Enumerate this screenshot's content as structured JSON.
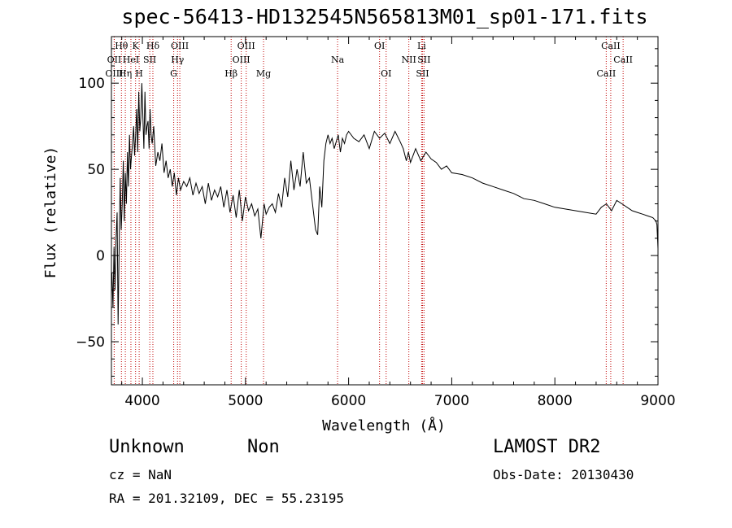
{
  "chart_data": {
    "type": "line",
    "title": "spec-56413-HD132545N565813M01_sp01-171.fits",
    "xlabel": "Wavelength (Å)",
    "ylabel": "Flux (relative)",
    "xlim": [
      3700,
      9000
    ],
    "ylim": [
      -75,
      127
    ],
    "x_ticks": [
      "4000",
      "5000",
      "6000",
      "7000",
      "8000",
      "9000"
    ],
    "y_ticks": [
      "−50",
      "0",
      "50",
      "100"
    ],
    "x_tick_values": [
      4000,
      5000,
      6000,
      7000,
      8000,
      9000
    ],
    "y_tick_values": [
      -50,
      0,
      50,
      100
    ],
    "grid": false,
    "series": [
      {
        "x": [
          3705,
          3715,
          3725,
          3735,
          3745,
          3755,
          3765,
          3775,
          3785,
          3795,
          3805,
          3815,
          3825,
          3835,
          3845,
          3855,
          3865,
          3875,
          3885,
          3895,
          3905,
          3915,
          3925,
          3935,
          3945,
          3955,
          3965,
          3975,
          3985,
          3995,
          4005,
          4015,
          4025,
          4035,
          4045,
          4055,
          4065,
          4075,
          4085,
          4095,
          4110,
          4130,
          4150,
          4170,
          4190,
          4210,
          4230,
          4250,
          4270,
          4290,
          4310,
          4330,
          4350,
          4370,
          4400,
          4430,
          4460,
          4490,
          4520,
          4550,
          4580,
          4610,
          4640,
          4670,
          4700,
          4730,
          4760,
          4790,
          4820,
          4850,
          4880,
          4910,
          4940,
          4970,
          5000,
          5030,
          5060,
          5090,
          5120,
          5150,
          5180,
          5200,
          5230,
          5260,
          5290,
          5320,
          5350,
          5380,
          5410,
          5440,
          5470,
          5500,
          5530,
          5560,
          5590,
          5620,
          5650,
          5680,
          5700,
          5720,
          5740,
          5760,
          5780,
          5800,
          5820,
          5840,
          5860,
          5880,
          5900,
          5920,
          5940,
          5960,
          5980,
          6000,
          6050,
          6100,
          6150,
          6200,
          6250,
          6300,
          6350,
          6400,
          6450,
          6500,
          6530,
          6560,
          6580,
          6600,
          6650,
          6700,
          6750,
          6800,
          6850,
          6900,
          6950,
          7000,
          7100,
          7200,
          7300,
          7400,
          7500,
          7600,
          7700,
          7800,
          7900,
          8000,
          8100,
          8200,
          8300,
          8400,
          8450,
          8500,
          8550,
          8600,
          8650,
          8700,
          8750,
          8800,
          8850,
          8900,
          8950,
          8980,
          8990,
          9000
        ],
        "y": [
          -10,
          -30,
          5,
          -20,
          10,
          25,
          -40,
          5,
          45,
          15,
          30,
          55,
          20,
          48,
          30,
          60,
          40,
          70,
          50,
          58,
          65,
          75,
          58,
          70,
          85,
          60,
          95,
          72,
          80,
          100,
          80,
          62,
          95,
          70,
          75,
          78,
          62,
          85,
          70,
          65,
          75,
          52,
          60,
          55,
          65,
          48,
          55,
          45,
          50,
          40,
          48,
          35,
          45,
          38,
          43,
          40,
          45,
          35,
          42,
          36,
          40,
          30,
          42,
          32,
          38,
          34,
          40,
          28,
          38,
          25,
          35,
          22,
          38,
          20,
          34,
          26,
          30,
          23,
          27,
          10,
          30,
          24,
          28,
          30,
          25,
          36,
          28,
          45,
          34,
          55,
          38,
          50,
          40,
          60,
          42,
          45,
          30,
          15,
          12,
          40,
          28,
          55,
          65,
          70,
          65,
          68,
          62,
          66,
          70,
          60,
          68,
          65,
          70,
          72,
          68,
          66,
          70,
          62,
          72,
          68,
          71,
          65,
          72,
          66,
          62,
          55,
          60,
          54,
          62,
          55,
          60,
          56,
          54,
          50,
          52,
          48,
          47,
          45,
          42,
          40,
          38,
          36,
          33,
          32,
          30,
          28,
          27,
          26,
          25,
          24,
          28,
          30,
          26,
          32,
          30,
          28,
          26,
          25,
          24,
          23,
          22,
          20,
          18,
          4
        ]
      }
    ],
    "line_markers": [
      {
        "label": "Hθ",
        "x": 3797,
        "row": 0
      },
      {
        "label": "OII",
        "x": 3727,
        "row": 1
      },
      {
        "label": "OIII",
        "x": 3727,
        "row": 2
      },
      {
        "label": "K",
        "x": 3934,
        "row": 0
      },
      {
        "label": "HeI",
        "x": 3889,
        "row": 1
      },
      {
        "label": "Hη",
        "x": 3835,
        "row": 2
      },
      {
        "label": "Hδ",
        "x": 4102,
        "row": 0
      },
      {
        "label": "SII",
        "x": 4072,
        "row": 1
      },
      {
        "label": "H",
        "x": 3969,
        "row": 2
      },
      {
        "label": "OIII",
        "x": 4363,
        "row": 0
      },
      {
        "label": "Hγ",
        "x": 4341,
        "row": 1
      },
      {
        "label": "G",
        "x": 4304,
        "row": 2
      },
      {
        "label": "OIII",
        "x": 5007,
        "row": 0
      },
      {
        "label": "OIII",
        "x": 4959,
        "row": 1
      },
      {
        "label": "Hβ",
        "x": 4861,
        "row": 2
      },
      {
        "label": "Mg",
        "x": 5175,
        "row": 2
      },
      {
        "label": "Na",
        "x": 5893,
        "row": 1
      },
      {
        "label": "OI",
        "x": 6300,
        "row": 0
      },
      {
        "label": "OI",
        "x": 6364,
        "row": 2
      },
      {
        "label": "Li",
        "x": 6708,
        "row": 0
      },
      {
        "label": "NII",
        "x": 6584,
        "row": 1
      },
      {
        "label": "SII",
        "x": 6731,
        "row": 1
      },
      {
        "label": "SII",
        "x": 6717,
        "row": 2
      },
      {
        "label": "CaII",
        "x": 8542,
        "row": 0
      },
      {
        "label": "CaII",
        "x": 8662,
        "row": 1
      },
      {
        "label": "CaII",
        "x": 8498,
        "row": 2
      }
    ]
  },
  "info": {
    "class_label": "Unknown",
    "subclass_label": "Non",
    "survey": "LAMOST DR2",
    "cz": "cz = NaN",
    "obs_date": "Obs-Date: 20130430",
    "radec": "RA = 201.32109, DEC =  55.23195"
  }
}
